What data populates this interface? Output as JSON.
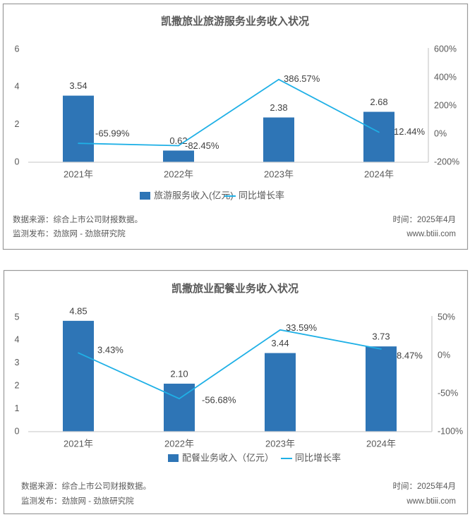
{
  "chart_data": [
    {
      "type": "bar+line",
      "title": "凯撒旅业旅游服务业务收入状况",
      "categories": [
        "2021年",
        "2022年",
        "2023年",
        "2024年"
      ],
      "bar_series": {
        "name": "旅游服务收入(亿元)",
        "values": [
          3.54,
          0.62,
          2.38,
          2.68
        ],
        "labels": [
          "3.54",
          "0.62",
          "2.38",
          "2.68"
        ],
        "color": "#2E75B6"
      },
      "line_series": {
        "name": "同比增长率",
        "values": [
          -65.99,
          -82.45,
          386.57,
          12.44
        ],
        "labels": [
          "-65.99%",
          "-82.45%",
          "386.57%",
          "12.44%"
        ],
        "color": "#1FB0E6"
      },
      "left_axis": {
        "range": [
          0,
          6
        ],
        "ticks": [
          "0",
          "2",
          "4",
          "6"
        ],
        "tick_values": [
          0,
          2,
          4,
          6
        ]
      },
      "right_axis": {
        "range": [
          -200,
          600
        ],
        "ticks": [
          "-200%",
          "0%",
          "200%",
          "400%",
          "600%"
        ],
        "tick_values": [
          -200,
          0,
          200,
          400,
          600
        ]
      },
      "legend_position": "bottom",
      "grid": false,
      "footer": {
        "source": "数据来源：综合上市公司财报数据。",
        "publisher": "监测发布：劲旅网 - 劲旅研究院",
        "date": "时间：2025年4月",
        "website": "www.btiii.com"
      }
    },
    {
      "type": "bar+line",
      "title": "凯撒旅业配餐业务收入状况",
      "categories": [
        "2021年",
        "2022年",
        "2023年",
        "2024年"
      ],
      "bar_series": {
        "name": "配餐业务收入（亿元）",
        "values": [
          4.85,
          2.1,
          3.44,
          3.73
        ],
        "labels": [
          "4.85",
          "2.10",
          "3.44",
          "3.73"
        ],
        "color": "#2E75B6"
      },
      "line_series": {
        "name": "同比增长率",
        "values": [
          3.43,
          -56.68,
          33.59,
          8.47
        ],
        "labels": [
          "3.43%",
          "-56.68%",
          "33.59%",
          "8.47%"
        ],
        "color": "#1FB0E6"
      },
      "left_axis": {
        "range": [
          0,
          5
        ],
        "ticks": [
          "0",
          "1",
          "2",
          "3",
          "4",
          "5"
        ],
        "tick_values": [
          0,
          1,
          2,
          3,
          4,
          5
        ]
      },
      "right_axis": {
        "range": [
          -100,
          50
        ],
        "ticks": [
          "-100%",
          "-50%",
          "0%",
          "50%"
        ],
        "tick_values": [
          -100,
          -50,
          0,
          50
        ]
      },
      "legend_position": "bottom",
      "grid": false,
      "footer": {
        "source": "数据来源：综合上市公司财报数据。",
        "publisher": "监测发布：劲旅网 - 劲旅研究院",
        "date": "时间：2025年4月",
        "website": "www.btiii.com"
      }
    }
  ]
}
